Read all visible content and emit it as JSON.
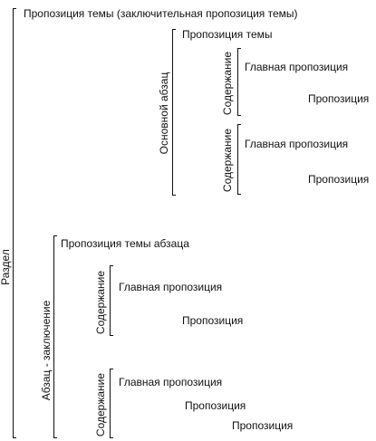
{
  "section": {
    "label": "Раздел",
    "topic_title": "Пропозиция темы (заключительная пропозиция темы)",
    "main_paragraph": {
      "label": "Основной абзац",
      "topic": "Пропозиция темы",
      "contents": [
        {
          "label": "Содержание",
          "main": "Главная пропозиция",
          "items": [
            "Пропозиция"
          ]
        },
        {
          "label": "Содержание",
          "main": "Главная пропозиция",
          "items": [
            "Пропозиция"
          ]
        }
      ]
    },
    "conclusion_paragraph": {
      "label": "Абзац - заключение",
      "topic": "Пропозиция темы абзаца",
      "contents": [
        {
          "label": "Содержание",
          "main": "Главная пропозиция",
          "items": [
            "Пропозиция"
          ]
        },
        {
          "label": "Содержание",
          "main": "Главная пропозиция",
          "items": [
            "Пропозиция",
            "Пропозиция"
          ]
        }
      ]
    }
  }
}
